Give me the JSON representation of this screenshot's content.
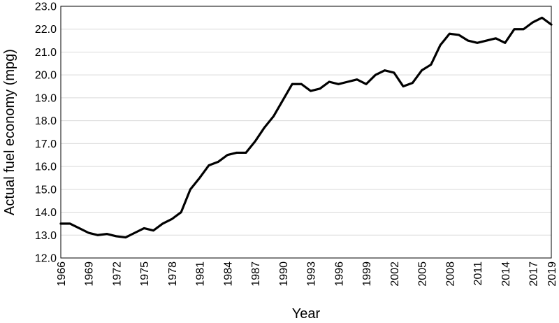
{
  "chart_data": {
    "type": "line",
    "title": "",
    "xlabel": "Year",
    "ylabel": "Actual fuel economy (mpg)",
    "xlim": [
      1966,
      2019
    ],
    "ylim": [
      12.0,
      23.0
    ],
    "x_ticks": [
      "1966",
      "1969",
      "1972",
      "1975",
      "1978",
      "1981",
      "1984",
      "1987",
      "1990",
      "1993",
      "1996",
      "1999",
      "2002",
      "2005",
      "2008",
      "2011",
      "2014",
      "2017",
      "2019"
    ],
    "y_ticks": [
      "12.0",
      "13.0",
      "14.0",
      "15.0",
      "16.0",
      "17.0",
      "18.0",
      "19.0",
      "20.0",
      "21.0",
      "22.0",
      "23.0"
    ],
    "grid": "horizontal",
    "legend": "none",
    "line_color": "#000000",
    "x": [
      1966,
      1967,
      1968,
      1969,
      1970,
      1971,
      1972,
      1973,
      1974,
      1975,
      1976,
      1977,
      1978,
      1979,
      1980,
      1981,
      1982,
      1983,
      1984,
      1985,
      1986,
      1987,
      1988,
      1989,
      1990,
      1991,
      1992,
      1993,
      1994,
      1995,
      1996,
      1997,
      1998,
      1999,
      2000,
      2001,
      2002,
      2003,
      2004,
      2005,
      2006,
      2007,
      2008,
      2009,
      2010,
      2011,
      2012,
      2013,
      2014,
      2015,
      2016,
      2017,
      2018,
      2019
    ],
    "series": [
      {
        "values": [
          13.5,
          13.5,
          13.3,
          13.1,
          13.0,
          13.05,
          12.95,
          12.9,
          13.1,
          13.3,
          13.2,
          13.5,
          13.7,
          14.0,
          15.0,
          15.5,
          16.05,
          16.2,
          16.5,
          16.6,
          16.6,
          17.1,
          17.7,
          18.2,
          18.9,
          19.6,
          19.6,
          19.3,
          19.4,
          19.7,
          19.6,
          19.7,
          19.8,
          19.6,
          20.0,
          20.2,
          20.1,
          19.5,
          19.65,
          20.2,
          20.45,
          21.3,
          21.8,
          21.75,
          21.5,
          21.4,
          21.5,
          21.6,
          21.4,
          22.0,
          22.0,
          22.3,
          22.5,
          22.2
        ]
      }
    ]
  }
}
